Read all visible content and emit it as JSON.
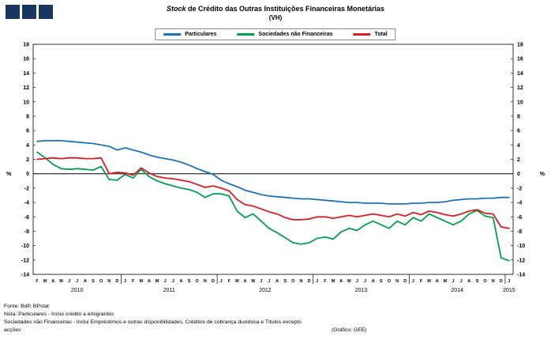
{
  "header": {
    "title_italic": "Stock",
    "title_rest": " de Crédito das Outras Instituições Financeiras Monetárias",
    "subtitle": "(VH)"
  },
  "chart_data": {
    "type": "line",
    "title": "Stock de Crédito das Outras Instituições Financeiras Monetárias (VH)",
    "ylabel_left": "%",
    "ylabel_right": "%",
    "ylim": [
      -14,
      18
    ],
    "ytick_step": 2,
    "grid": false,
    "legend_position": "top",
    "x_labels": [
      "F",
      "M",
      "A",
      "M",
      "J",
      "J",
      "A",
      "S",
      "O",
      "N",
      "D",
      "J",
      "F",
      "M",
      "A",
      "M",
      "J",
      "J",
      "A",
      "S",
      "O",
      "N",
      "D",
      "J",
      "F",
      "M",
      "A",
      "M",
      "J",
      "J",
      "A",
      "S",
      "O",
      "N",
      "D",
      "J",
      "F",
      "M",
      "A",
      "M",
      "J",
      "J",
      "A",
      "S",
      "O",
      "N",
      "D",
      "J",
      "F",
      "M",
      "A",
      "M",
      "J",
      "J",
      "A",
      "S",
      "O",
      "N",
      "D",
      "J"
    ],
    "year_groups": [
      {
        "label": "2010",
        "count": 11
      },
      {
        "label": "2011",
        "count": 12
      },
      {
        "label": "2012",
        "count": 12
      },
      {
        "label": "2013",
        "count": 12
      },
      {
        "label": "2014",
        "count": 12
      },
      {
        "label": "2015",
        "count": 1
      }
    ],
    "series": [
      {
        "name": "Particulares",
        "color": "#1a74bb",
        "values": [
          4.5,
          4.6,
          4.6,
          4.6,
          4.5,
          4.4,
          4.3,
          4.2,
          4.0,
          3.8,
          3.3,
          3.6,
          3.3,
          3.0,
          2.6,
          2.3,
          2.1,
          1.9,
          1.6,
          1.2,
          0.7,
          0.3,
          -0.1,
          -0.9,
          -1.4,
          -1.8,
          -2.3,
          -2.6,
          -2.9,
          -3.1,
          -3.2,
          -3.3,
          -3.4,
          -3.5,
          -3.5,
          -3.6,
          -3.7,
          -3.8,
          -3.9,
          -4.0,
          -4.0,
          -4.1,
          -4.1,
          -4.1,
          -4.2,
          -4.2,
          -4.2,
          -4.1,
          -4.1,
          -4.0,
          -4.0,
          -3.9,
          -3.7,
          -3.6,
          -3.5,
          -3.5,
          -3.4,
          -3.4,
          -3.3,
          -3.3
        ]
      },
      {
        "name": "Sociedades não Financeiras",
        "color": "#00a150",
        "values": [
          3.0,
          2.2,
          1.3,
          0.7,
          0.6,
          0.7,
          0.6,
          0.5,
          1.0,
          -0.8,
          -0.9,
          -0.1,
          -0.6,
          0.6,
          -0.4,
          -1.0,
          -1.4,
          -1.7,
          -2.0,
          -2.2,
          -2.6,
          -3.3,
          -2.8,
          -2.8,
          -3.1,
          -5.2,
          -6.1,
          -5.6,
          -6.6,
          -7.6,
          -8.2,
          -8.9,
          -9.6,
          -9.8,
          -9.6,
          -9.0,
          -8.8,
          -9.1,
          -8.1,
          -7.6,
          -7.9,
          -7.1,
          -6.6,
          -7.1,
          -7.6,
          -6.6,
          -7.1,
          -6.1,
          -6.6,
          -5.6,
          -6.1,
          -6.6,
          -7.1,
          -6.6,
          -5.6,
          -5.1,
          -5.9,
          -6.1,
          -11.7,
          -12.1
        ]
      },
      {
        "name": "Total",
        "color": "#e01b22",
        "values": [
          2.0,
          2.1,
          2.2,
          2.1,
          2.2,
          2.2,
          2.1,
          2.1,
          2.2,
          0.0,
          0.2,
          0.1,
          -0.2,
          0.8,
          0.1,
          -0.4,
          -0.6,
          -0.7,
          -0.9,
          -1.1,
          -1.5,
          -1.9,
          -1.7,
          -2.0,
          -2.4,
          -3.6,
          -4.3,
          -4.5,
          -4.9,
          -5.3,
          -5.6,
          -6.1,
          -6.4,
          -6.4,
          -6.3,
          -6.0,
          -6.0,
          -6.2,
          -6.0,
          -5.8,
          -6.0,
          -5.8,
          -5.6,
          -5.8,
          -6.0,
          -5.6,
          -5.9,
          -5.4,
          -5.7,
          -5.2,
          -5.4,
          -5.7,
          -5.9,
          -5.6,
          -5.2,
          -5.0,
          -5.5,
          -5.6,
          -7.4,
          -7.6
        ]
      }
    ]
  },
  "footer": {
    "line1": "Fonte: BdP, BPstat",
    "line2": "Nota: Particulares - Inclui crédito a emigrantes",
    "line3": "Sociedades não Financeiras - Inclui Empréstimos e outras disponibilidades, Créditos de cobrança duvidosa e Títulos excepto",
    "line4_left": "acções",
    "line4_right": "(Gráfico: GEE)"
  }
}
